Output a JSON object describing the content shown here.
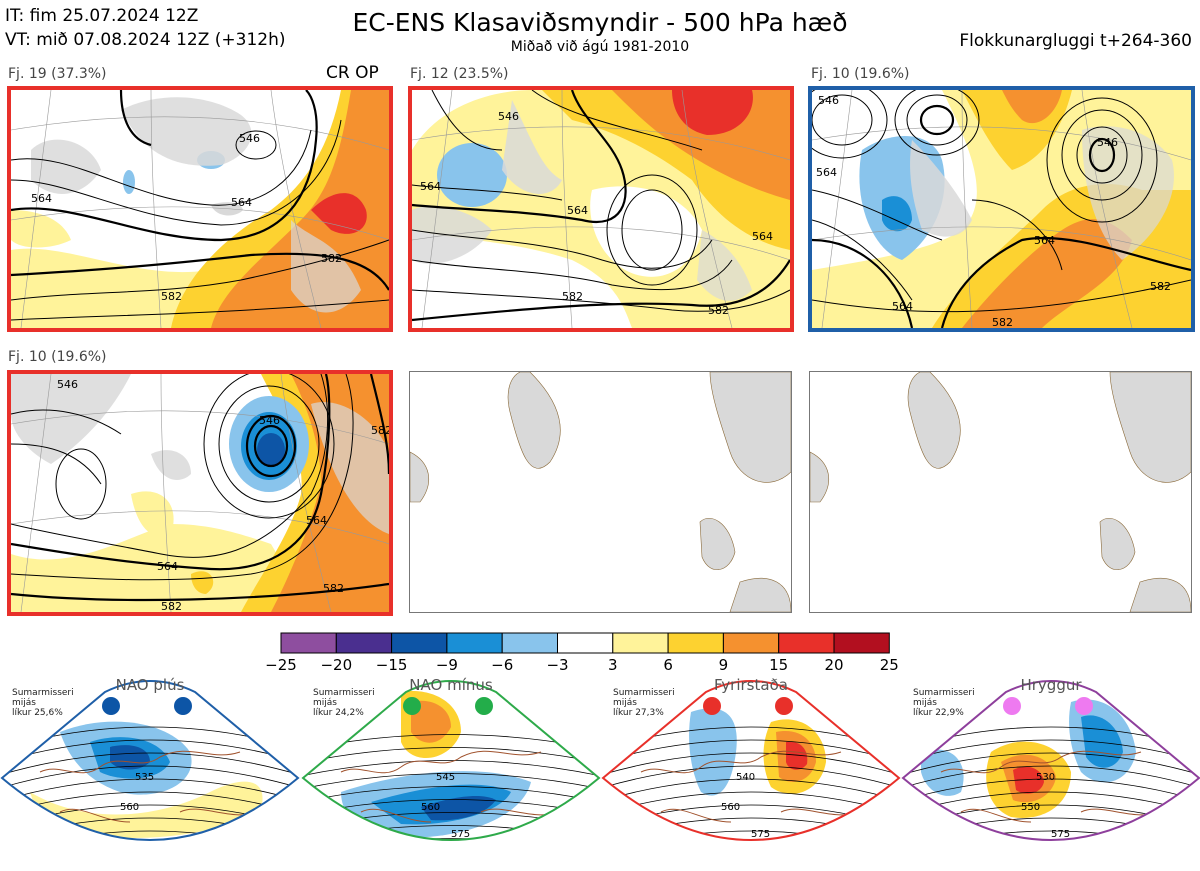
{
  "header": {
    "init_time": "IT: fim 25.07.2024 12Z",
    "valid_time": "VT: mið 07.08.2024 12Z  (+312h)",
    "title": "EC-ENS Klasaviðsmyndir - 500 hPa hæð",
    "subtitle": "Miðað við ágú 1981-2010",
    "cluster_window": "Flokkunargluggi t+264-360"
  },
  "panels": [
    {
      "caption": "Fj. 19 (37.3%)",
      "tag": "CR OP",
      "border_color": "#e8302a",
      "contour_labels": [
        "546",
        "564",
        "564",
        "582",
        "582"
      ]
    },
    {
      "caption": "Fj. 12 (23.5%)",
      "tag": "",
      "border_color": "#e8302a",
      "contour_labels": [
        "546",
        "564",
        "564",
        "582",
        "582",
        "564"
      ]
    },
    {
      "caption": "Fj. 10 (19.6%)",
      "tag": "",
      "border_color": "#1f5fa8",
      "contour_labels": [
        "546",
        "546",
        "564",
        "564",
        "564",
        "582",
        "582"
      ]
    },
    {
      "caption": "Fj. 10 (19.6%)",
      "tag": "",
      "border_color": "#e8302a",
      "contour_labels": [
        "546",
        "546",
        "564",
        "564",
        "582",
        "582",
        "582"
      ]
    }
  ],
  "colorbar": {
    "ticks": [
      "−25",
      "−20",
      "−15",
      "−9",
      "−6",
      "−3",
      "3",
      "6",
      "9",
      "15",
      "20",
      "25"
    ],
    "colors": [
      "#8e4e9f",
      "#4a2f8f",
      "#0d55a6",
      "#1a8fd6",
      "#89c4ec",
      "#ffffff",
      "#fff39a",
      "#fdd230",
      "#f5912f",
      "#e8302a",
      "#b20f1f"
    ]
  },
  "regimes": [
    {
      "name": "NAO plús",
      "season": "Sumarmisseri",
      "period": "mijás",
      "likelihood": "líkur 25,6%",
      "color": "#1f5fa8",
      "dot_color": "#0d55a6",
      "contour_labels": [
        "535",
        "560"
      ]
    },
    {
      "name": "NAO mínus",
      "season": "Sumarmisseri",
      "period": "mijás",
      "likelihood": "líkur 24,2%",
      "color": "#2eaa4a",
      "dot_color": "#23ad4a",
      "contour_labels": [
        "545",
        "560",
        "575"
      ]
    },
    {
      "name": "Fyrirstaða",
      "season": "Sumarmisseri",
      "period": "mijás",
      "likelihood": "líkur 27,3%",
      "color": "#e8302a",
      "dot_color": "#e8302a",
      "contour_labels": [
        "540",
        "560",
        "575"
      ]
    },
    {
      "name": "Hryggur",
      "season": "Sumarmisseri",
      "period": "mijás",
      "likelihood": "líkur 22,9%",
      "color": "#8e3f9c",
      "dot_color": "#ee7af0",
      "contour_labels": [
        "530",
        "550",
        "575"
      ]
    }
  ]
}
